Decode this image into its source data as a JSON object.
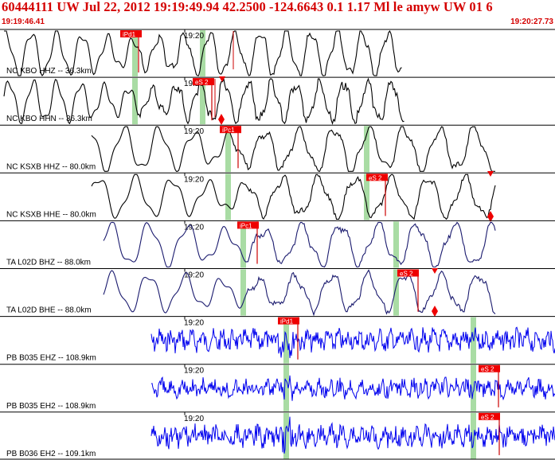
{
  "header": {
    "title": "60444111 UW Jul 22, 2012 19:19:49.94   42.2500 -124.6643   0.1 1.17 Ml le amyw UW 01    6",
    "start_time": "19:19:46.41",
    "end_time": "19:20:27.73",
    "time_mark": "19:20"
  },
  "colors": {
    "header_text": "#d40000",
    "trace_black": "#000000",
    "trace_navy": "#1a1a6e",
    "trace_blue": "#0000ee",
    "pick_box": "#ee0000",
    "pick_line": "#cc0000",
    "window_band": "#a9dca4",
    "separator": "#000000"
  },
  "channels": [
    {
      "label": "NC KBO HHZ -- 36.3km",
      "color": "trace_black",
      "picks": [
        {
          "text": "iPd1"
        }
      ],
      "markers": [],
      "bands": 2
    },
    {
      "label": "NC KBO HHN -- 36.3km",
      "color": "trace_black",
      "picks": [
        {
          "text": "eS 2"
        }
      ],
      "markers": [
        {
          "kind": "diamond"
        },
        {
          "kind": "triangle"
        }
      ],
      "bands": 2
    },
    {
      "label": "NC KSXB HHZ -- 80.0km",
      "color": "trace_black",
      "picks": [
        {
          "text": "iPc1"
        }
      ],
      "markers": [],
      "bands": 2
    },
    {
      "label": "NC KSXB HHE -- 80.0km",
      "color": "trace_black",
      "picks": [
        {
          "text": "eS 2"
        }
      ],
      "markers": [
        {
          "kind": "triangle"
        },
        {
          "kind": "diamond"
        }
      ],
      "bands": 2
    },
    {
      "label": "TA L02D BHZ -- 88.0km",
      "color": "trace_navy",
      "picks": [
        {
          "text": "iPc1"
        }
      ],
      "markers": [],
      "bands": 2
    },
    {
      "label": "TA L02D BHE -- 88.0km",
      "color": "trace_navy",
      "picks": [
        {
          "text": "eS 2"
        }
      ],
      "markers": [
        {
          "kind": "triangle"
        },
        {
          "kind": "diamond"
        }
      ],
      "bands": 2
    },
    {
      "label": "PB B035 EHZ -- 108.9km",
      "color": "trace_blue",
      "picks": [
        {
          "text": "iPd1"
        }
      ],
      "markers": [],
      "bands": 2
    },
    {
      "label": "PB B035 EH2 -- 108.9km",
      "color": "trace_blue",
      "picks": [
        {
          "text": "eS 2"
        }
      ],
      "markers": [],
      "bands": 2
    },
    {
      "label": "PB B036 EH2 -- 109.1km",
      "color": "trace_blue",
      "picks": [
        {
          "text": "eS 2"
        }
      ],
      "markers": [],
      "bands": 2
    }
  ]
}
